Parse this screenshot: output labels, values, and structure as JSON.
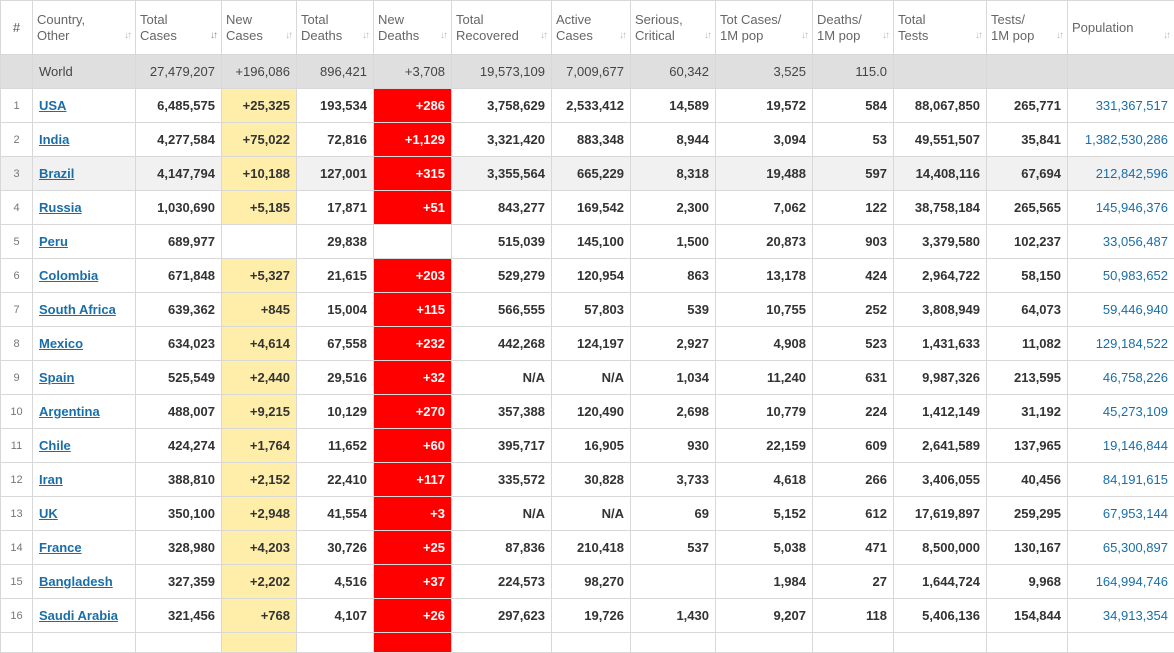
{
  "headers": [
    {
      "l1": "#",
      "l2": ""
    },
    {
      "l1": "Country,",
      "l2": "Other"
    },
    {
      "l1": "Total",
      "l2": "Cases"
    },
    {
      "l1": "New",
      "l2": "Cases"
    },
    {
      "l1": "Total",
      "l2": "Deaths"
    },
    {
      "l1": "New",
      "l2": "Deaths"
    },
    {
      "l1": "Total",
      "l2": "Recovered"
    },
    {
      "l1": "Active",
      "l2": "Cases"
    },
    {
      "l1": "Serious,",
      "l2": "Critical"
    },
    {
      "l1": "Tot Cases/",
      "l2": "1M pop"
    },
    {
      "l1": "Deaths/",
      "l2": "1M pop"
    },
    {
      "l1": "Total",
      "l2": "Tests"
    },
    {
      "l1": "Tests/",
      "l2": "1M pop"
    },
    {
      "l1": "Population",
      "l2": ""
    }
  ],
  "world": {
    "label": "World",
    "total_cases": "27,479,207",
    "new_cases": "+196,086",
    "total_deaths": "896,421",
    "new_deaths": "+3,708",
    "total_recovered": "19,573,109",
    "active_cases": "7,009,677",
    "serious_critical": "60,342",
    "cases_per_1m": "3,525",
    "deaths_per_1m": "115.0",
    "total_tests": "",
    "tests_per_1m": "",
    "population": ""
  },
  "rows": [
    {
      "idx": "1",
      "country": "USA",
      "total_cases": "6,485,575",
      "new_cases": "+25,325",
      "total_deaths": "193,534",
      "new_deaths": "+286",
      "total_recovered": "3,758,629",
      "active_cases": "2,533,412",
      "serious_critical": "14,589",
      "cases_per_1m": "19,572",
      "deaths_per_1m": "584",
      "total_tests": "88,067,850",
      "tests_per_1m": "265,771",
      "population": "331,367,517"
    },
    {
      "idx": "2",
      "country": "India",
      "total_cases": "4,277,584",
      "new_cases": "+75,022",
      "total_deaths": "72,816",
      "new_deaths": "+1,129",
      "total_recovered": "3,321,420",
      "active_cases": "883,348",
      "serious_critical": "8,944",
      "cases_per_1m": "3,094",
      "deaths_per_1m": "53",
      "total_tests": "49,551,507",
      "tests_per_1m": "35,841",
      "population": "1,382,530,286"
    },
    {
      "idx": "3",
      "country": "Brazil",
      "total_cases": "4,147,794",
      "new_cases": "+10,188",
      "total_deaths": "127,001",
      "new_deaths": "+315",
      "total_recovered": "3,355,564",
      "active_cases": "665,229",
      "serious_critical": "8,318",
      "cases_per_1m": "19,488",
      "deaths_per_1m": "597",
      "total_tests": "14,408,116",
      "tests_per_1m": "67,694",
      "population": "212,842,596"
    },
    {
      "idx": "4",
      "country": "Russia",
      "total_cases": "1,030,690",
      "new_cases": "+5,185",
      "total_deaths": "17,871",
      "new_deaths": "+51",
      "total_recovered": "843,277",
      "active_cases": "169,542",
      "serious_critical": "2,300",
      "cases_per_1m": "7,062",
      "deaths_per_1m": "122",
      "total_tests": "38,758,184",
      "tests_per_1m": "265,565",
      "population": "145,946,376"
    },
    {
      "idx": "5",
      "country": "Peru",
      "total_cases": "689,977",
      "new_cases": "",
      "total_deaths": "29,838",
      "new_deaths": "",
      "total_recovered": "515,039",
      "active_cases": "145,100",
      "serious_critical": "1,500",
      "cases_per_1m": "20,873",
      "deaths_per_1m": "903",
      "total_tests": "3,379,580",
      "tests_per_1m": "102,237",
      "population": "33,056,487"
    },
    {
      "idx": "6",
      "country": "Colombia",
      "total_cases": "671,848",
      "new_cases": "+5,327",
      "total_deaths": "21,615",
      "new_deaths": "+203",
      "total_recovered": "529,279",
      "active_cases": "120,954",
      "serious_critical": "863",
      "cases_per_1m": "13,178",
      "deaths_per_1m": "424",
      "total_tests": "2,964,722",
      "tests_per_1m": "58,150",
      "population": "50,983,652"
    },
    {
      "idx": "7",
      "country": "South Africa",
      "total_cases": "639,362",
      "new_cases": "+845",
      "total_deaths": "15,004",
      "new_deaths": "+115",
      "total_recovered": "566,555",
      "active_cases": "57,803",
      "serious_critical": "539",
      "cases_per_1m": "10,755",
      "deaths_per_1m": "252",
      "total_tests": "3,808,949",
      "tests_per_1m": "64,073",
      "population": "59,446,940"
    },
    {
      "idx": "8",
      "country": "Mexico",
      "total_cases": "634,023",
      "new_cases": "+4,614",
      "total_deaths": "67,558",
      "new_deaths": "+232",
      "total_recovered": "442,268",
      "active_cases": "124,197",
      "serious_critical": "2,927",
      "cases_per_1m": "4,908",
      "deaths_per_1m": "523",
      "total_tests": "1,431,633",
      "tests_per_1m": "11,082",
      "population": "129,184,522"
    },
    {
      "idx": "9",
      "country": "Spain",
      "total_cases": "525,549",
      "new_cases": "+2,440",
      "total_deaths": "29,516",
      "new_deaths": "+32",
      "total_recovered": "N/A",
      "active_cases": "N/A",
      "serious_critical": "1,034",
      "cases_per_1m": "11,240",
      "deaths_per_1m": "631",
      "total_tests": "9,987,326",
      "tests_per_1m": "213,595",
      "population": "46,758,226"
    },
    {
      "idx": "10",
      "country": "Argentina",
      "total_cases": "488,007",
      "new_cases": "+9,215",
      "total_deaths": "10,129",
      "new_deaths": "+270",
      "total_recovered": "357,388",
      "active_cases": "120,490",
      "serious_critical": "2,698",
      "cases_per_1m": "10,779",
      "deaths_per_1m": "224",
      "total_tests": "1,412,149",
      "tests_per_1m": "31,192",
      "population": "45,273,109"
    },
    {
      "idx": "11",
      "country": "Chile",
      "total_cases": "424,274",
      "new_cases": "+1,764",
      "total_deaths": "11,652",
      "new_deaths": "+60",
      "total_recovered": "395,717",
      "active_cases": "16,905",
      "serious_critical": "930",
      "cases_per_1m": "22,159",
      "deaths_per_1m": "609",
      "total_tests": "2,641,589",
      "tests_per_1m": "137,965",
      "population": "19,146,844"
    },
    {
      "idx": "12",
      "country": "Iran",
      "total_cases": "388,810",
      "new_cases": "+2,152",
      "total_deaths": "22,410",
      "new_deaths": "+117",
      "total_recovered": "335,572",
      "active_cases": "30,828",
      "serious_critical": "3,733",
      "cases_per_1m": "4,618",
      "deaths_per_1m": "266",
      "total_tests": "3,406,055",
      "tests_per_1m": "40,456",
      "population": "84,191,615"
    },
    {
      "idx": "13",
      "country": "UK",
      "total_cases": "350,100",
      "new_cases": "+2,948",
      "total_deaths": "41,554",
      "new_deaths": "+3",
      "total_recovered": "N/A",
      "active_cases": "N/A",
      "serious_critical": "69",
      "cases_per_1m": "5,152",
      "deaths_per_1m": "612",
      "total_tests": "17,619,897",
      "tests_per_1m": "259,295",
      "population": "67,953,144"
    },
    {
      "idx": "14",
      "country": "France",
      "total_cases": "328,980",
      "new_cases": "+4,203",
      "total_deaths": "30,726",
      "new_deaths": "+25",
      "total_recovered": "87,836",
      "active_cases": "210,418",
      "serious_critical": "537",
      "cases_per_1m": "5,038",
      "deaths_per_1m": "471",
      "total_tests": "8,500,000",
      "tests_per_1m": "130,167",
      "population": "65,300,897"
    },
    {
      "idx": "15",
      "country": "Bangladesh",
      "total_cases": "327,359",
      "new_cases": "+2,202",
      "total_deaths": "4,516",
      "new_deaths": "+37",
      "total_recovered": "224,573",
      "active_cases": "98,270",
      "serious_critical": "",
      "cases_per_1m": "1,984",
      "deaths_per_1m": "27",
      "total_tests": "1,644,724",
      "tests_per_1m": "9,968",
      "population": "164,994,746"
    },
    {
      "idx": "16",
      "country": "Saudi Arabia",
      "total_cases": "321,456",
      "new_cases": "+768",
      "total_deaths": "4,107",
      "new_deaths": "+26",
      "total_recovered": "297,623",
      "active_cases": "19,726",
      "serious_critical": "1,430",
      "cases_per_1m": "9,207",
      "deaths_per_1m": "118",
      "total_tests": "5,406,136",
      "tests_per_1m": "154,844",
      "population": "34,913,354"
    }
  ],
  "colors": {
    "new_cases_bg": "#ffeeaa",
    "new_deaths_bg": "#ff0000",
    "world_row_bg": "#dfdfdf",
    "link": "#1a6ea8"
  },
  "icons": {
    "sort": "sort-arrows-icon"
  }
}
